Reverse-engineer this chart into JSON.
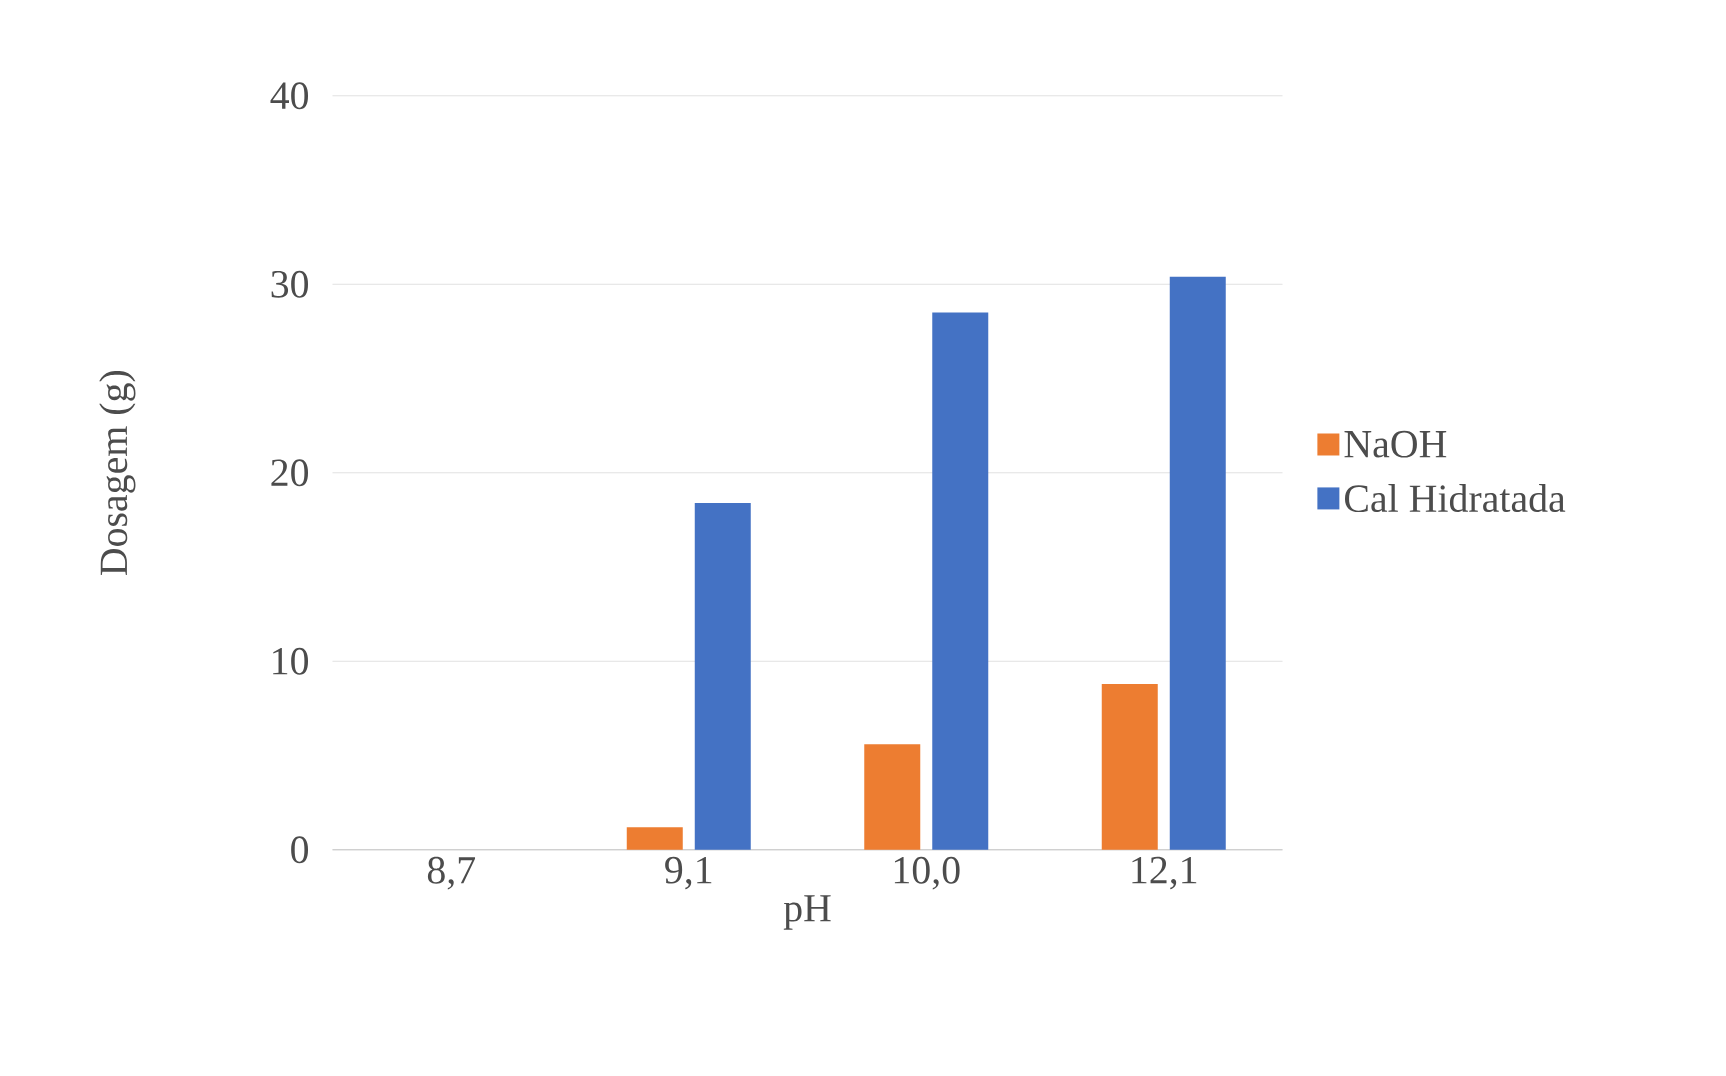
{
  "chart_data": {
    "type": "bar",
    "xlabel": "pH",
    "ylabel": "Dosagem (g)",
    "categories": [
      "8,7",
      "9,1",
      "10,0",
      "12,1"
    ],
    "series": [
      {
        "name": "NaOH",
        "color": "#ed7d31",
        "values": [
          0,
          1.2,
          5.6,
          8.8
        ]
      },
      {
        "name": "Cal Hidratada",
        "color": "#4472c4",
        "values": [
          0,
          18.4,
          28.5,
          30.4
        ]
      }
    ],
    "ylim": [
      0,
      40
    ],
    "yticks": [
      0,
      10,
      20,
      30,
      40
    ],
    "grid": "y",
    "legend": "right"
  }
}
